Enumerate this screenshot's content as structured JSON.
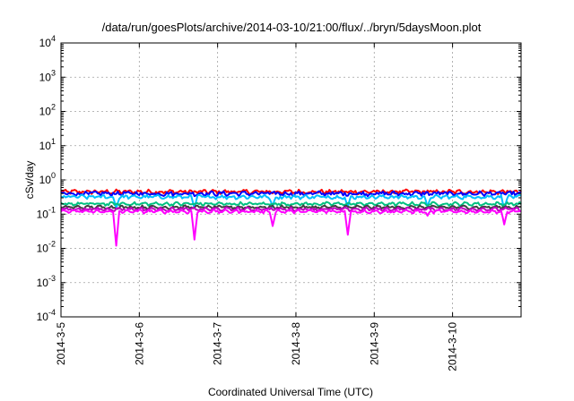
{
  "chart_data": {
    "type": "line",
    "title": "/data/run/goesPlots/archive/2014-03-10/21:00/flux/../bryn/5daysMoon.plot",
    "xlabel": "Coordinated Universal Time (UTC)",
    "ylabel": "cSv/day",
    "yscale": "log",
    "ylim": [
      0.0001,
      10000
    ],
    "y_ticks": [
      {
        "value": 0.0001,
        "base": "10",
        "exp": "-4"
      },
      {
        "value": 0.001,
        "base": "10",
        "exp": "-3"
      },
      {
        "value": 0.01,
        "base": "10",
        "exp": "-2"
      },
      {
        "value": 0.1,
        "base": "10",
        "exp": "-1"
      },
      {
        "value": 1,
        "base": "10",
        "exp": "0"
      },
      {
        "value": 10,
        "base": "10",
        "exp": "1"
      },
      {
        "value": 100,
        "base": "10",
        "exp": "2"
      },
      {
        "value": 1000,
        "base": "10",
        "exp": "3"
      },
      {
        "value": 10000,
        "base": "10",
        "exp": "4"
      }
    ],
    "xlim": [
      "2014-03-05 00:00",
      "2014-03-10 21:00"
    ],
    "x_ticks": [
      "2014-3-5",
      "2014-3-6",
      "2014-3-7",
      "2014-3-8",
      "2014-3-9",
      "2014-3-10"
    ],
    "x_tick_dates": [
      "2014-03-05",
      "2014-03-06",
      "2014-03-07",
      "2014-03-08",
      "2014-03-09",
      "2014-03-10"
    ],
    "grid": true,
    "legend": "none",
    "series": [
      {
        "color": "#ff0000",
        "base": 0.45,
        "noise": 0.12,
        "dips": []
      },
      {
        "color": "#0000ff",
        "base": 0.4,
        "noise": 0.12,
        "dips": []
      },
      {
        "color": "#00bfff",
        "base": 0.32,
        "noise": 0.1,
        "dips": [
          {
            "x": "2014-03-05 17:00",
            "y": 0.15
          },
          {
            "x": "2014-03-06 17:00",
            "y": 0.15
          },
          {
            "x": "2014-03-07 17:00",
            "y": 0.16
          },
          {
            "x": "2014-03-08 16:00",
            "y": 0.16
          },
          {
            "x": "2014-03-09 16:30",
            "y": 0.16
          },
          {
            "x": "2014-03-10 16:00",
            "y": 0.16
          }
        ]
      },
      {
        "color": "#00c080",
        "base": 0.2,
        "noise": 0.08,
        "dips": []
      },
      {
        "color": "#404040",
        "base": 0.16,
        "noise": 0.08,
        "dips": []
      },
      {
        "color": "#c000c0",
        "base": 0.14,
        "noise": 0.08,
        "dips": []
      },
      {
        "color": "#ff00ff",
        "base": 0.12,
        "noise": 0.08,
        "dips": [
          {
            "x": "2014-03-05 17:00",
            "y": 0.012
          },
          {
            "x": "2014-03-06 17:00",
            "y": 0.018
          },
          {
            "x": "2014-03-07 17:00",
            "y": 0.045
          },
          {
            "x": "2014-03-08 16:00",
            "y": 0.025
          },
          {
            "x": "2014-03-09 16:30",
            "y": 0.09
          },
          {
            "x": "2014-03-10 16:00",
            "y": 0.05
          }
        ]
      }
    ]
  }
}
